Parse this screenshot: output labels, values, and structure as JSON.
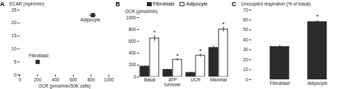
{
  "chart_data": [
    {
      "type": "scatter",
      "title": "A",
      "xlabel": "OCR (pmol/min/50K cells)",
      "ylabel": "ECAR (mpH/min)",
      "x": [
        200,
        820
      ],
      "values": [
        5,
        23
      ],
      "xerr": [
        20,
        40
      ],
      "yerr": [
        0.4,
        0.8
      ],
      "color": "#2a2a2a",
      "marker": "square",
      "xlim": [
        0,
        1000
      ],
      "ylim": [
        0,
        25
      ],
      "xticks": [
        0,
        200,
        400,
        600,
        800,
        1000
      ],
      "yticks": [
        0,
        5,
        10,
        15,
        20,
        25
      ],
      "grid": false,
      "annotations": [
        {
          "text": "Fibroblast",
          "x": 100,
          "y": 6.8
        },
        {
          "text": "Adipocyte",
          "x": 680,
          "y": 20.5
        }
      ]
    },
    {
      "type": "bar",
      "title": "B",
      "ylabel": "OCR (pmol/min)",
      "categories": [
        "Basal",
        "ATP\nturnover",
        "UCR",
        "Maximal"
      ],
      "series": [
        {
          "name": "Fibroblast",
          "color": "#2a2a2a",
          "values": [
            175,
            120,
            70,
            490
          ],
          "errors": [
            15,
            12,
            8,
            30
          ]
        },
        {
          "name": "Adipocyte",
          "color": "#ffffff",
          "values": [
            650,
            290,
            360,
            800
          ],
          "errors": [
            50,
            20,
            25,
            40
          ]
        }
      ],
      "edge_color": "#2a2a2a",
      "ylim": [
        0,
        1000
      ],
      "yticks": [
        0,
        200,
        400,
        600,
        800,
        1000
      ],
      "grid": false,
      "legend": "top",
      "annotations": [
        {
          "text": "*",
          "category": "Basal",
          "series": "Adipocyte",
          "y": 715
        },
        {
          "text": "*",
          "category": "ATP\nturnover",
          "series": "Adipocyte",
          "y": 325
        },
        {
          "text": "*",
          "category": "UCR",
          "series": "Adipocyte",
          "y": 400
        },
        {
          "text": "*",
          "category": "Maximal",
          "series": "Adipocyte",
          "y": 860
        }
      ]
    },
    {
      "type": "bar",
      "title": "C",
      "ylabel": "Uncoupled respiration (% of basal)",
      "categories": [
        "Fibroblast",
        "Adipocyte"
      ],
      "values": [
        33,
        58
      ],
      "errors": [
        1.5,
        1.5
      ],
      "colors": [
        "#2a2a2a",
        "#2a2a2a"
      ],
      "edge_color": "#2a2a2a",
      "ylim": [
        0,
        70
      ],
      "yticks": [
        0,
        10,
        20,
        30,
        40,
        50,
        60,
        70
      ],
      "grid": false,
      "annotations": [
        {
          "text": "*",
          "category": "Adipocyte",
          "y": 61
        }
      ]
    }
  ]
}
